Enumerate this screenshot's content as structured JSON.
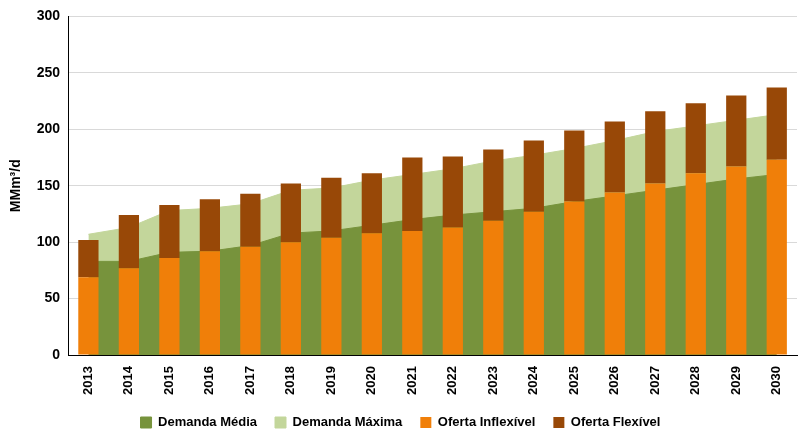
{
  "chart_data": {
    "type": "bar",
    "y_label": "MMm³/d",
    "categories": [
      "2013",
      "2014",
      "2015",
      "2016",
      "2017",
      "2018",
      "2019",
      "2020",
      "2021",
      "2022",
      "2023",
      "2024",
      "2025",
      "2026",
      "2027",
      "2028",
      "2029",
      "2030"
    ],
    "series": [
      {
        "name": "Demanda Média",
        "type": "area",
        "color": "#77933c",
        "values": [
          83,
          83,
          91,
          92,
          97,
          108,
          110,
          115,
          120,
          124,
          127,
          130,
          136,
          141,
          146,
          151,
          156,
          160
        ]
      },
      {
        "name": "Demanda Máxima",
        "type": "area",
        "color": "#c3d69b",
        "values": [
          107,
          113,
          128,
          130,
          134,
          146,
          148,
          155,
          160,
          165,
          172,
          177,
          183,
          190,
          198,
          203,
          208,
          213
        ]
      },
      {
        "name": "Oferta Inflexível",
        "type": "bar",
        "color": "#f07f09",
        "values": [
          69,
          77,
          86,
          92,
          96,
          100,
          104,
          108,
          110,
          113,
          119,
          127,
          136,
          144,
          152,
          161,
          167,
          173
        ]
      },
      {
        "name": "Oferta Flexível",
        "type": "bar",
        "color": "#984807",
        "values": [
          33,
          47,
          47,
          46,
          47,
          52,
          53,
          53,
          65,
          63,
          63,
          63,
          63,
          63,
          64,
          62,
          63,
          64
        ]
      }
    ],
    "stacked": true,
    "ylim": [
      0,
      300
    ],
    "yticks": [
      0,
      50,
      100,
      150,
      200,
      250,
      300
    ],
    "grid": true,
    "legend": "bottom"
  }
}
